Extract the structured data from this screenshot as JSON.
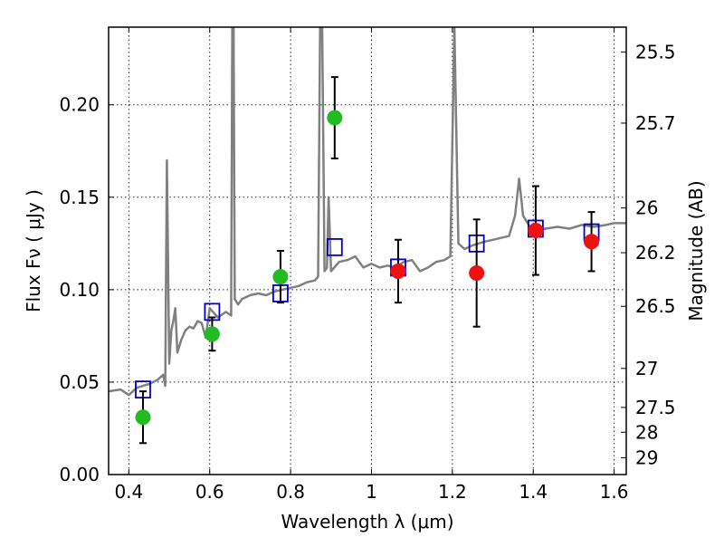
{
  "chart_data": {
    "type": "scatter",
    "title": "",
    "xlabel": "Wavelength  λ (μm)",
    "ylabel": "Flux  Fν  ( μJy )",
    "y2label": "Magnitude (AB)",
    "xlim": [
      0.35,
      1.63
    ],
    "ylim": [
      0.0,
      0.242
    ],
    "grid": true,
    "legend": "none",
    "x_ticks": [
      0.4,
      0.6,
      0.8,
      1.0,
      1.2,
      1.4,
      1.6
    ],
    "x_tick_labels": [
      "0.4",
      "0.6",
      "0.8",
      "1",
      "1.2",
      "1.4",
      "1.6"
    ],
    "y_ticks": [
      0.0,
      0.05,
      0.1,
      0.15,
      0.2
    ],
    "y_tick_labels": [
      "0.00",
      "0.05",
      "0.10",
      "0.15",
      "0.20"
    ],
    "y2_ticks": [
      {
        "label": "25.5",
        "flux": 0.2286
      },
      {
        "label": "25.7",
        "flux": 0.1901
      },
      {
        "label": "26",
        "flux": 0.1442
      },
      {
        "label": "26.2",
        "flux": 0.12
      },
      {
        "label": "26.5",
        "flux": 0.091
      },
      {
        "label": "27",
        "flux": 0.0574
      },
      {
        "label": "27.5",
        "flux": 0.0363
      },
      {
        "label": "28",
        "flux": 0.0229
      },
      {
        "label": "29",
        "flux": 0.0091
      }
    ],
    "colors": {
      "sed": "#808080",
      "green": "#22bb22",
      "red": "#ee1111",
      "model": "#0000cc",
      "errorbar": "#000000"
    },
    "series": [
      {
        "marker": "circle",
        "color": "#22bb22",
        "points": [
          {
            "x": 0.435,
            "y": 0.031,
            "yerr": 0.014
          },
          {
            "x": 0.606,
            "y": 0.076,
            "yerr": 0.009
          },
          {
            "x": 0.775,
            "y": 0.107,
            "yerr": 0.014
          },
          {
            "x": 0.909,
            "y": 0.193,
            "yerr": 0.022
          }
        ]
      },
      {
        "marker": "circle",
        "color": "#ee1111",
        "points": [
          {
            "x": 1.066,
            "y": 0.11,
            "yerr": 0.017
          },
          {
            "x": 1.26,
            "y": 0.109,
            "yerr": 0.029
          },
          {
            "x": 1.406,
            "y": 0.132,
            "yerr": 0.024
          },
          {
            "x": 1.544,
            "y": 0.126,
            "yerr": 0.016
          }
        ]
      },
      {
        "marker": "open-square",
        "color": "#0000cc",
        "points": [
          {
            "x": 0.435,
            "y": 0.046
          },
          {
            "x": 0.606,
            "y": 0.088
          },
          {
            "x": 0.775,
            "y": 0.098
          },
          {
            "x": 0.909,
            "y": 0.123
          },
          {
            "x": 1.066,
            "y": 0.112
          },
          {
            "x": 1.26,
            "y": 0.125
          },
          {
            "x": 1.406,
            "y": 0.133
          },
          {
            "x": 1.544,
            "y": 0.131
          }
        ]
      },
      {
        "marker": "line",
        "color": "#808080",
        "points": [
          [
            0.35,
            0.045
          ],
          [
            0.38,
            0.046
          ],
          [
            0.4,
            0.043
          ],
          [
            0.42,
            0.047
          ],
          [
            0.45,
            0.049
          ],
          [
            0.47,
            0.051
          ],
          [
            0.485,
            0.054
          ],
          [
            0.49,
            0.048
          ],
          [
            0.494,
            0.17
          ],
          [
            0.5,
            0.06
          ],
          [
            0.505,
            0.078
          ],
          [
            0.51,
            0.083
          ],
          [
            0.515,
            0.09
          ],
          [
            0.52,
            0.066
          ],
          [
            0.53,
            0.073
          ],
          [
            0.54,
            0.078
          ],
          [
            0.55,
            0.08
          ],
          [
            0.56,
            0.079
          ],
          [
            0.57,
            0.083
          ],
          [
            0.58,
            0.082
          ],
          [
            0.59,
            0.074
          ],
          [
            0.6,
            0.09
          ],
          [
            0.62,
            0.085
          ],
          [
            0.64,
            0.088
          ],
          [
            0.653,
            0.086
          ],
          [
            0.656,
            0.242
          ],
          [
            0.659,
            0.242
          ],
          [
            0.662,
            0.095
          ],
          [
            0.67,
            0.092
          ],
          [
            0.68,
            0.095
          ],
          [
            0.7,
            0.097
          ],
          [
            0.72,
            0.098
          ],
          [
            0.74,
            0.097
          ],
          [
            0.76,
            0.099
          ],
          [
            0.78,
            0.1
          ],
          [
            0.8,
            0.101
          ],
          [
            0.82,
            0.102
          ],
          [
            0.84,
            0.104
          ],
          [
            0.86,
            0.105
          ],
          [
            0.868,
            0.107
          ],
          [
            0.873,
            0.242
          ],
          [
            0.878,
            0.242
          ],
          [
            0.884,
            0.11
          ],
          [
            0.89,
            0.112
          ],
          [
            0.894,
            0.15
          ],
          [
            0.9,
            0.11
          ],
          [
            0.92,
            0.115
          ],
          [
            0.94,
            0.116
          ],
          [
            0.96,
            0.118
          ],
          [
            0.98,
            0.112
          ],
          [
            1.0,
            0.114
          ],
          [
            1.02,
            0.112
          ],
          [
            1.04,
            0.113
          ],
          [
            1.06,
            0.112
          ],
          [
            1.08,
            0.115
          ],
          [
            1.1,
            0.116
          ],
          [
            1.12,
            0.11
          ],
          [
            1.14,
            0.112
          ],
          [
            1.16,
            0.115
          ],
          [
            1.18,
            0.116
          ],
          [
            1.195,
            0.118
          ],
          [
            1.205,
            0.242
          ],
          [
            1.215,
            0.125
          ],
          [
            1.23,
            0.122
          ],
          [
            1.25,
            0.124
          ],
          [
            1.28,
            0.126
          ],
          [
            1.3,
            0.127
          ],
          [
            1.32,
            0.128
          ],
          [
            1.34,
            0.129
          ],
          [
            1.355,
            0.14
          ],
          [
            1.365,
            0.16
          ],
          [
            1.375,
            0.14
          ],
          [
            1.4,
            0.131
          ],
          [
            1.43,
            0.133
          ],
          [
            1.46,
            0.134
          ],
          [
            1.49,
            0.133
          ],
          [
            1.52,
            0.135
          ],
          [
            1.55,
            0.134
          ],
          [
            1.58,
            0.135
          ],
          [
            1.6,
            0.136
          ],
          [
            1.63,
            0.136
          ]
        ]
      }
    ]
  }
}
